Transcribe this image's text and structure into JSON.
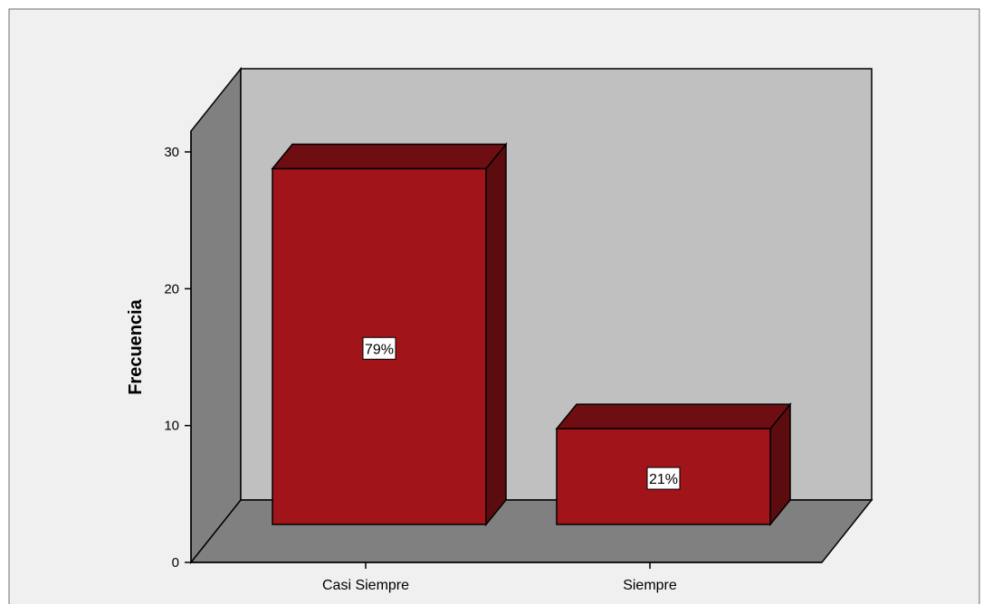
{
  "chart_data": {
    "type": "bar",
    "style": "3d",
    "categories": [
      "Casi Siempre",
      "Siempre"
    ],
    "values": [
      26,
      7
    ],
    "data_labels": [
      "79%",
      "21%"
    ],
    "ylabel": "Frecuencia",
    "xlabel": "",
    "ylim": [
      0,
      30
    ],
    "yticks": [
      0,
      10,
      20,
      30
    ],
    "ytick_labels": [
      "0",
      "10",
      "20",
      "30"
    ],
    "grid": false,
    "legend": "none",
    "colors": {
      "background": "#f0f0f0",
      "frame": "#6b6b6b",
      "back_wall": "#c0c0c0",
      "side_wall": "#808080",
      "floor": "#808080",
      "bar_front": "#a0141a",
      "bar_top": "#6e0e12",
      "bar_side": "#5c0b0e",
      "edge": "#000000",
      "label_box": "#ffffff"
    }
  }
}
